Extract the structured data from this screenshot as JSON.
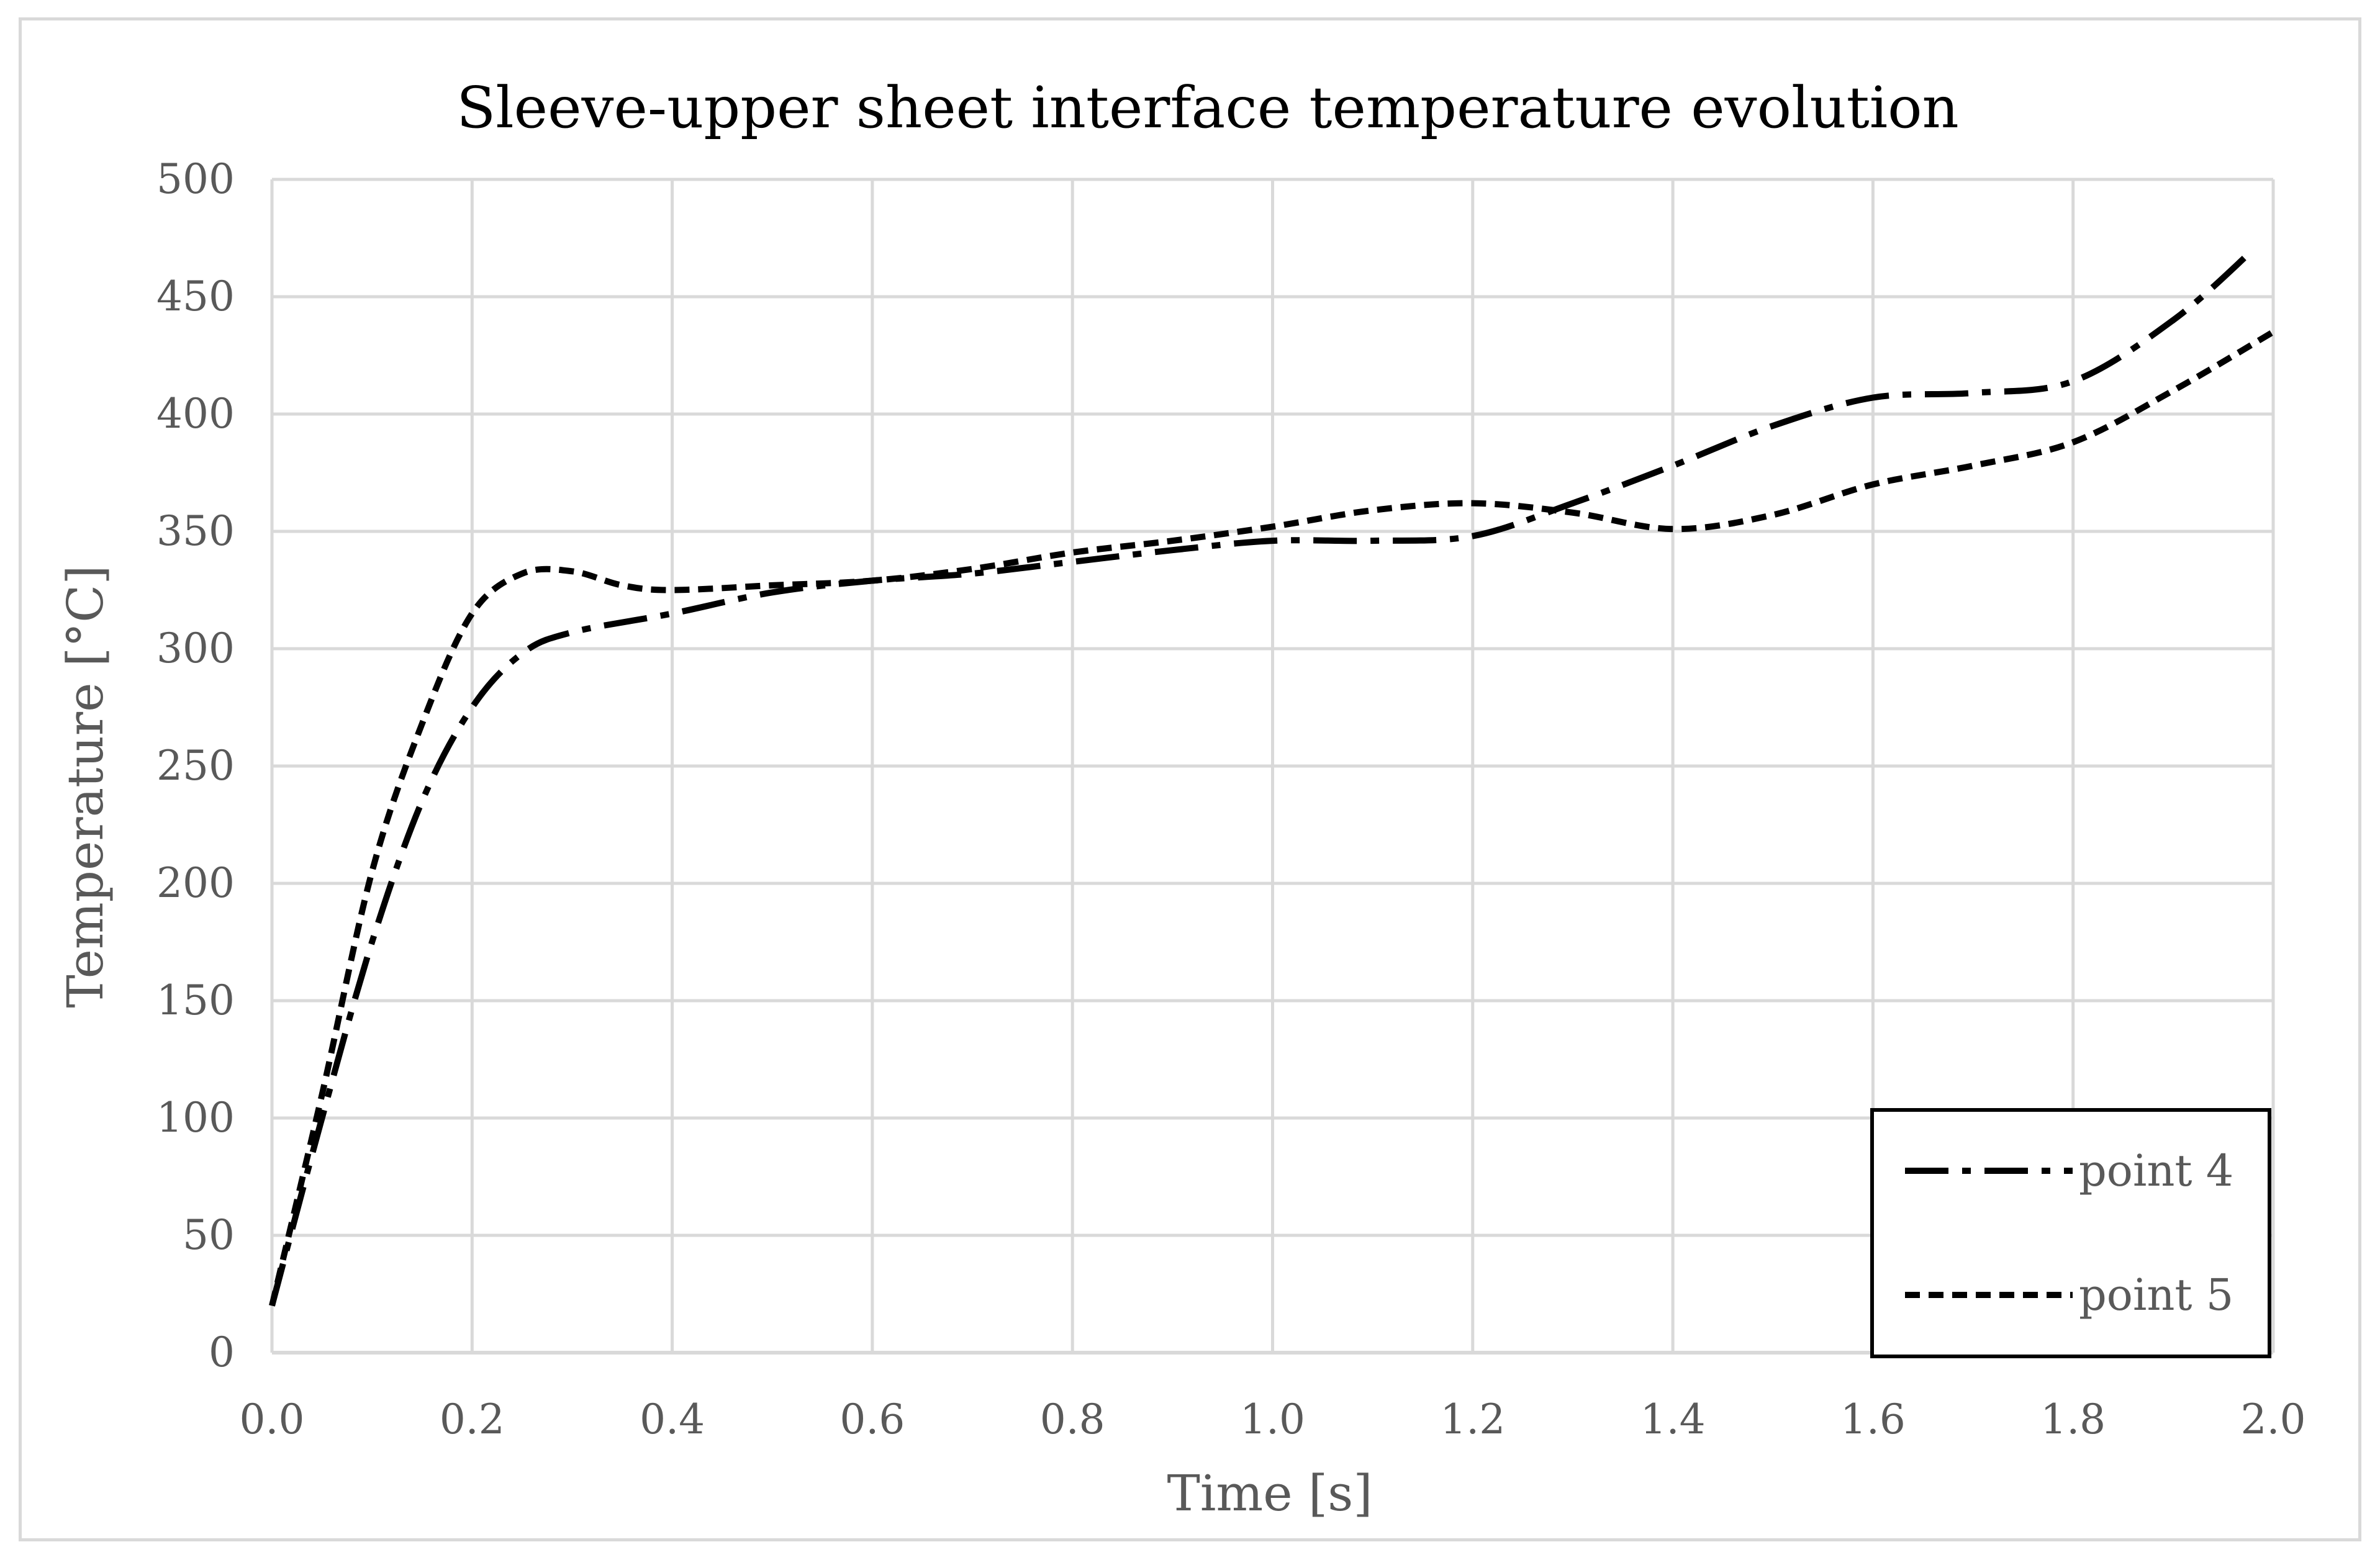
{
  "chart_data": {
    "type": "line",
    "title": "Sleeve-upper sheet interface temperature evolution",
    "xlabel": "Time [s]",
    "ylabel": "Temperature [°C]",
    "xlim": [
      0.0,
      2.0
    ],
    "ylim": [
      0,
      500
    ],
    "x_ticks": [
      "0.0",
      "0.2",
      "0.4",
      "0.6",
      "0.8",
      "1.0",
      "1.2",
      "1.4",
      "1.6",
      "1.8",
      "2.0"
    ],
    "y_ticks": [
      "0",
      "50",
      "100",
      "150",
      "200",
      "250",
      "300",
      "350",
      "400",
      "450",
      "500"
    ],
    "grid": true,
    "legend_position": "bottom-right",
    "series": [
      {
        "name": "point 4",
        "line_style": "dash-dot",
        "color": "#000000",
        "points": [
          [
            0.0,
            20
          ],
          [
            0.05,
            100
          ],
          [
            0.1,
            175
          ],
          [
            0.15,
            235
          ],
          [
            0.2,
            275
          ],
          [
            0.25,
            298
          ],
          [
            0.3,
            307
          ],
          [
            0.4,
            315
          ],
          [
            0.5,
            324
          ],
          [
            0.6,
            329
          ],
          [
            0.7,
            332
          ],
          [
            0.8,
            337
          ],
          [
            0.9,
            342
          ],
          [
            1.0,
            346
          ],
          [
            1.1,
            346
          ],
          [
            1.2,
            348
          ],
          [
            1.3,
            362
          ],
          [
            1.4,
            378
          ],
          [
            1.5,
            395
          ],
          [
            1.6,
            407
          ],
          [
            1.7,
            409
          ],
          [
            1.8,
            414
          ],
          [
            1.9,
            440
          ],
          [
            1.98,
            470
          ]
        ]
      },
      {
        "name": "point 5",
        "line_style": "dashed",
        "color": "#000000",
        "points": [
          [
            0.0,
            20
          ],
          [
            0.05,
            110
          ],
          [
            0.1,
            205
          ],
          [
            0.15,
            268
          ],
          [
            0.2,
            315
          ],
          [
            0.25,
            332
          ],
          [
            0.3,
            333
          ],
          [
            0.35,
            327
          ],
          [
            0.4,
            325
          ],
          [
            0.5,
            327
          ],
          [
            0.6,
            329
          ],
          [
            0.7,
            334
          ],
          [
            0.8,
            341
          ],
          [
            0.9,
            346
          ],
          [
            1.0,
            352
          ],
          [
            1.1,
            359
          ],
          [
            1.2,
            362
          ],
          [
            1.3,
            358
          ],
          [
            1.4,
            351
          ],
          [
            1.5,
            357
          ],
          [
            1.6,
            370
          ],
          [
            1.7,
            378
          ],
          [
            1.8,
            388
          ],
          [
            1.9,
            410
          ],
          [
            2.0,
            435
          ]
        ]
      }
    ]
  }
}
